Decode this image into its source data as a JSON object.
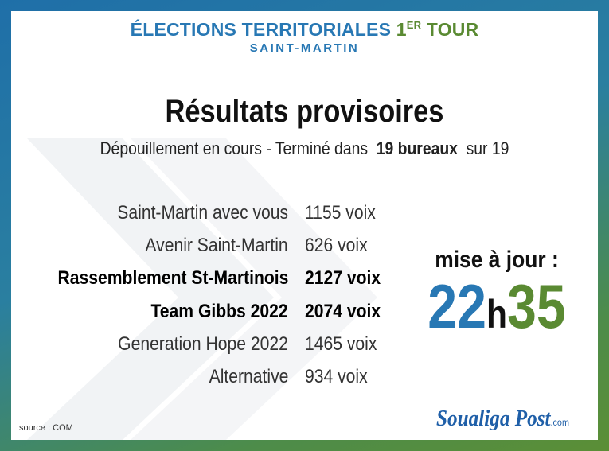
{
  "header": {
    "title": "ÉLECTIONS TERRITORIALES",
    "title_round": "1",
    "title_sup": "ER",
    "title_end": "TOUR",
    "subtitle": "SAINT-MARTIN"
  },
  "heading": "Résultats provisoires",
  "status": {
    "text": "Dépouillement en cours - Terminé dans",
    "highlight": "19 bureaux",
    "end": "sur 19"
  },
  "results": [
    {
      "name": "Saint-Martin avec vous",
      "votes": "1155 voix",
      "bold": false
    },
    {
      "name": "Avenir Saint-Martin",
      "votes": "626 voix",
      "bold": false
    },
    {
      "name": "Rassemblement St-Martinois",
      "votes": "2127 voix",
      "bold": true
    },
    {
      "name": "Team Gibbs 2022",
      "votes": "2074 voix",
      "bold": true
    },
    {
      "name": "Generation Hope 2022",
      "votes": "1465 voix",
      "bold": false
    },
    {
      "name": "Alternative",
      "votes": "934 voix",
      "bold": false
    }
  ],
  "update": {
    "label": "mise à jour :",
    "hours": "22",
    "sep": "h",
    "minutes": "35"
  },
  "source": "source : COM",
  "logo": {
    "name": "Soualiga Post",
    "suffix": ".com"
  }
}
